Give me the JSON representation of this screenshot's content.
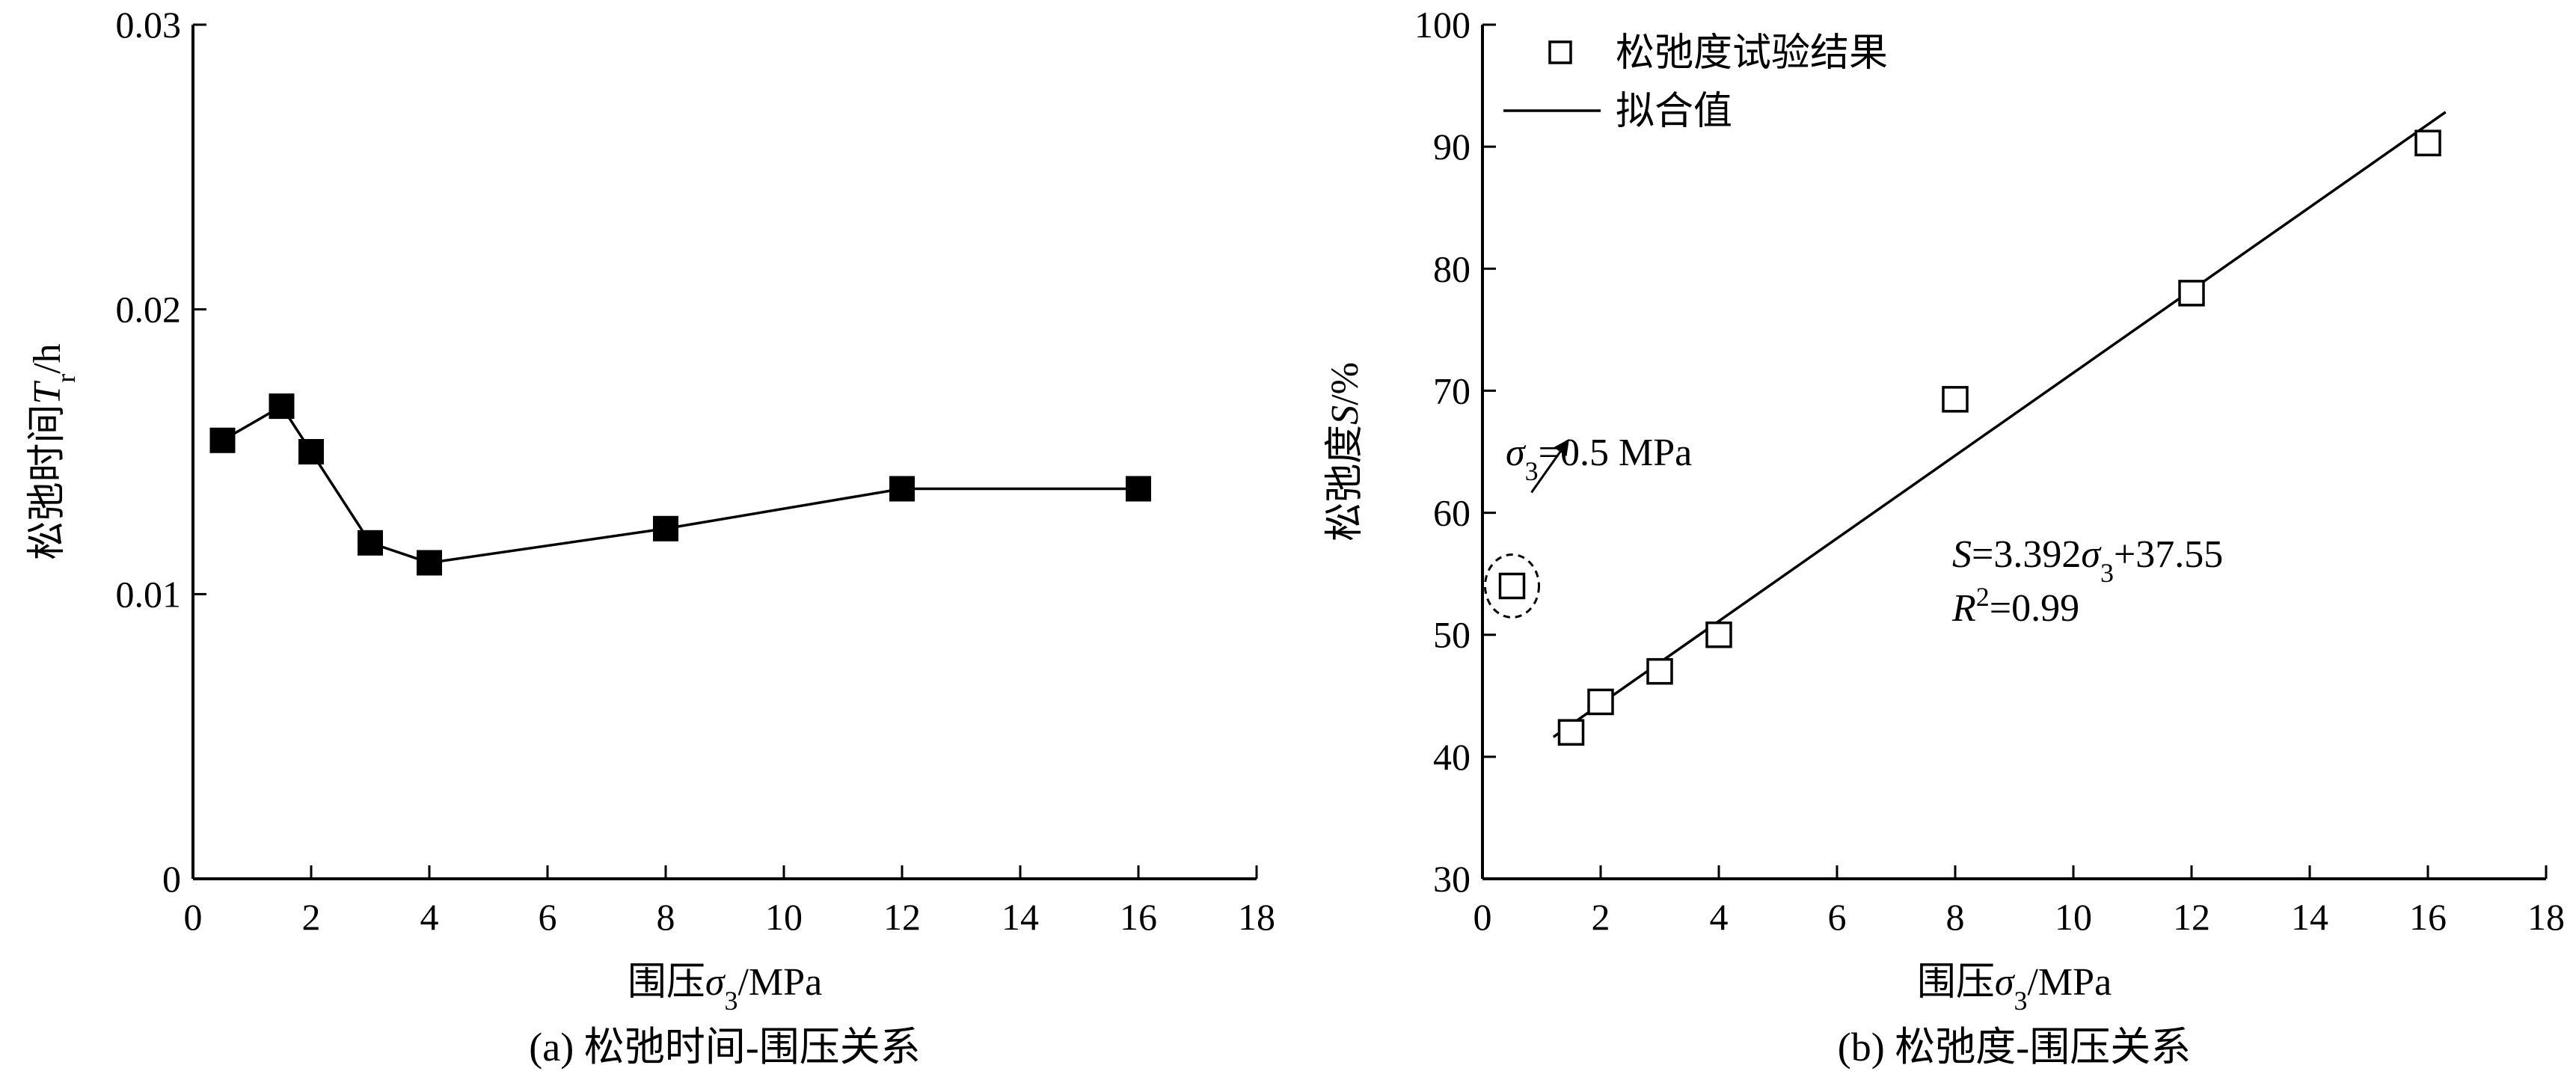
{
  "chart_data": [
    {
      "panel_id": "a",
      "type": "line",
      "caption": "(a) 松弛时间-围压关系",
      "xlabel": {
        "prefix": "围压",
        "symbol": "σ",
        "sub": "3",
        "suffix": "/MPa"
      },
      "ylabel": {
        "prefix": "松弛时间",
        "symbol": "T",
        "sub": "r",
        "suffix": "/h"
      },
      "xlim": [
        0,
        18
      ],
      "ylim": [
        0,
        0.03
      ],
      "xticks": [
        0,
        2,
        4,
        6,
        8,
        10,
        12,
        14,
        16,
        18
      ],
      "xtick_labels": [
        "0",
        "2",
        "4",
        "6",
        "8",
        "10",
        "12",
        "14",
        "16",
        "18"
      ],
      "yticks": [
        0,
        0.01,
        0.02,
        0.03
      ],
      "ytick_labels": [
        "0",
        "0.01",
        "0.02",
        "0.03"
      ],
      "grid": false,
      "series": [
        {
          "marker": "filled-square",
          "color": "#000000",
          "x": [
            0.5,
            1.5,
            2,
            3,
            4,
            8,
            12,
            16
          ],
          "y": [
            0.0154,
            0.0166,
            0.015,
            0.0118,
            0.0111,
            0.0123,
            0.0137,
            0.0137
          ]
        }
      ]
    },
    {
      "panel_id": "b",
      "type": "scatter",
      "caption": "(b) 松弛度-围压关系",
      "xlabel": {
        "prefix": "围压",
        "symbol": "σ",
        "sub": "3",
        "suffix": "/MPa"
      },
      "ylabel": {
        "prefix": "松弛度",
        "symbol": "S",
        "sub": "",
        "suffix": "/%"
      },
      "xlim": [
        0,
        18
      ],
      "ylim": [
        30,
        100
      ],
      "xticks": [
        0,
        2,
        4,
        6,
        8,
        10,
        12,
        14,
        16,
        18
      ],
      "xtick_labels": [
        "0",
        "2",
        "4",
        "6",
        "8",
        "10",
        "12",
        "14",
        "16",
        "18"
      ],
      "yticks": [
        30,
        40,
        50,
        60,
        70,
        80,
        90,
        100
      ],
      "ytick_labels": [
        "30",
        "40",
        "50",
        "60",
        "70",
        "80",
        "90",
        "100"
      ],
      "grid": false,
      "legend": {
        "position": "top-left",
        "entries": [
          {
            "label": "松弛度试验结果",
            "marker": "open-square"
          },
          {
            "label": "拟合值",
            "marker": "line"
          }
        ]
      },
      "series": [
        {
          "name": "松弛度试验结果",
          "marker": "open-square",
          "x": [
            0.5,
            1.5,
            2,
            3,
            4,
            8,
            12,
            16
          ],
          "y": [
            54,
            42,
            44.5,
            47,
            50,
            69.3,
            78,
            90.3
          ]
        }
      ],
      "fit": {
        "name": "拟合值",
        "slope": 3.392,
        "intercept": 37.55,
        "x_range": [
          1.2,
          16.3
        ]
      },
      "equation": {
        "s": "S",
        "rest1": "=3.392",
        "sigma": "σ",
        "sub": "3",
        "rest2": "+37.55"
      },
      "r2": {
        "r": "R",
        "sup": "2",
        "rest": "=0.99"
      },
      "annotation": {
        "sigma": "σ",
        "sub": "3",
        "text": "=0.5 MPa",
        "target_x": 0.5,
        "target_y": 54
      }
    }
  ]
}
